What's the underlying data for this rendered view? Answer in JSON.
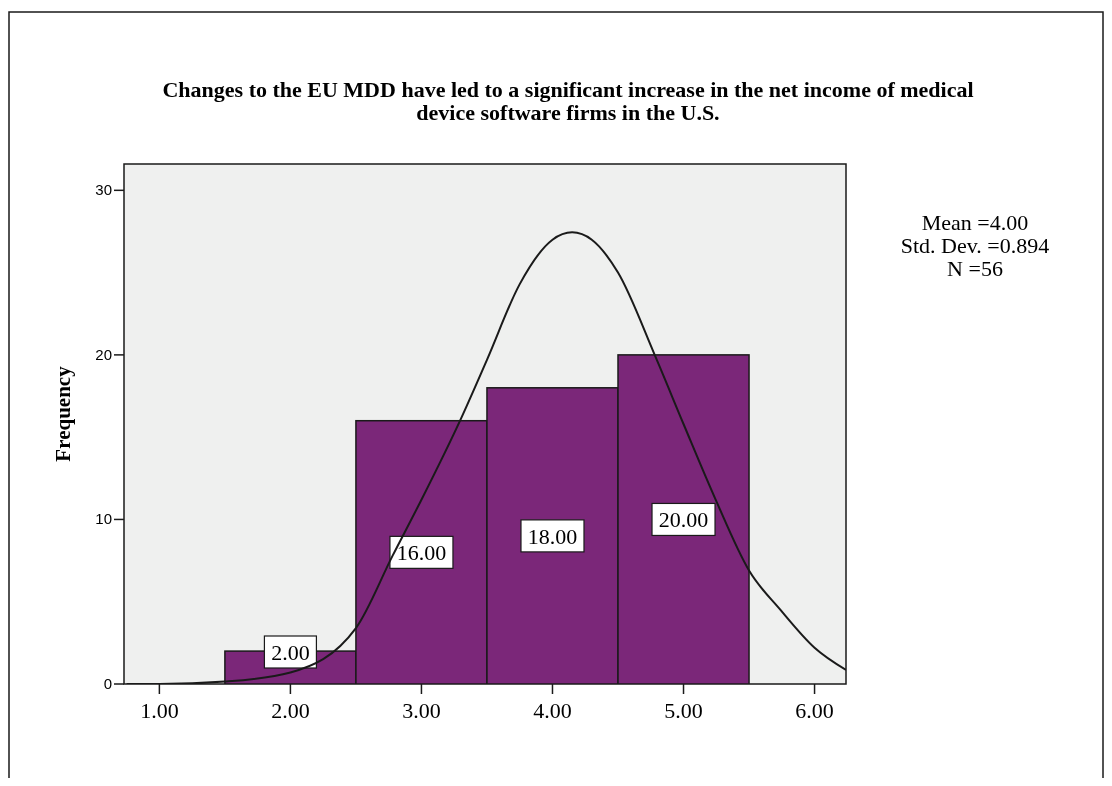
{
  "chart_data": {
    "type": "histogram",
    "title": "Changes to the EU MDD have led to a significant increase in the net income of medical device software firms in the U.S.",
    "ylabel": "Frequency",
    "annotations": [
      "Mean =4.00",
      "Std. Dev. =0.894",
      "N =56"
    ],
    "series": [
      {
        "type": "histogram",
        "bins": [
          1.5,
          2.5,
          3.5,
          4.5,
          5.5
        ],
        "values": [
          2,
          16,
          18,
          20
        ],
        "value_labels": [
          "2.00",
          "16.00",
          "18.00",
          "20.00"
        ],
        "color": "#7b2779"
      },
      {
        "type": "line",
        "color": "#1a1a1a",
        "marker": "none",
        "x": [
          0.75,
          1.0,
          1.5,
          2.0,
          2.5,
          2.78,
          3.0,
          3.3,
          3.5,
          3.75,
          4.0,
          4.15,
          4.3,
          4.5,
          4.78,
          5.0,
          5.24,
          5.5,
          5.74,
          6.0,
          6.24
        ],
        "values": [
          0,
          0,
          0.15,
          0.7,
          3.4,
          7.8,
          11.2,
          16.1,
          19.7,
          24.3,
          27.0,
          27.45,
          27.0,
          25.0,
          20.0,
          15.8,
          11.3,
          6.9,
          4.5,
          2.2,
          0.85
        ]
      }
    ],
    "xlim": [
      0.73,
      6.24
    ],
    "ylim": [
      0,
      31.6
    ],
    "xticks": [
      {
        "value": 1,
        "label": "1.00"
      },
      {
        "value": 2,
        "label": "2.00"
      },
      {
        "value": 3,
        "label": "3.00"
      },
      {
        "value": 4,
        "label": "4.00"
      },
      {
        "value": 5,
        "label": "5.00"
      },
      {
        "value": 6,
        "label": "6.00"
      }
    ],
    "yticks": [
      0,
      10,
      20,
      30
    ],
    "grid": false
  }
}
